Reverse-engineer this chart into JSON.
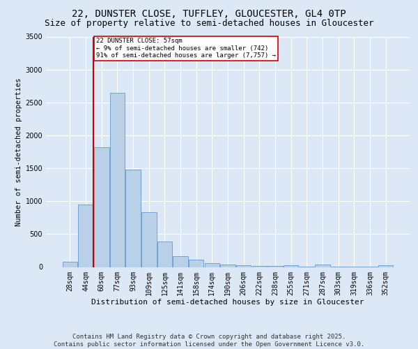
{
  "title1": "22, DUNSTER CLOSE, TUFFLEY, GLOUCESTER, GL4 0TP",
  "title2": "Size of property relative to semi-detached houses in Gloucester",
  "xlabel": "Distribution of semi-detached houses by size in Gloucester",
  "ylabel": "Number of semi-detached properties",
  "footnote1": "Contains HM Land Registry data © Crown copyright and database right 2025.",
  "footnote2": "Contains public sector information licensed under the Open Government Licence v3.0.",
  "bin_labels": [
    "28sqm",
    "44sqm",
    "60sqm",
    "77sqm",
    "93sqm",
    "109sqm",
    "125sqm",
    "141sqm",
    "158sqm",
    "174sqm",
    "190sqm",
    "206sqm",
    "222sqm",
    "238sqm",
    "255sqm",
    "271sqm",
    "287sqm",
    "303sqm",
    "319sqm",
    "336sqm",
    "352sqm"
  ],
  "bar_values": [
    80,
    950,
    1820,
    2650,
    1480,
    830,
    390,
    160,
    110,
    55,
    35,
    25,
    20,
    15,
    30,
    10,
    35,
    10,
    10,
    5,
    25
  ],
  "bar_color": "#b8d0e8",
  "bar_edge_color": "#6699cc",
  "vline_color": "#cc0000",
  "vline_x": 1.5,
  "annotation_text": "22 DUNSTER CLOSE: 57sqm\n← 9% of semi-detached houses are smaller (742)\n91% of semi-detached houses are larger (7,757) →",
  "annotation_box_color": "#ffffff",
  "annotation_box_edge": "#cc0000",
  "ylim": [
    0,
    3500
  ],
  "yticks": [
    0,
    500,
    1000,
    1500,
    2000,
    2500,
    3000,
    3500
  ],
  "background_color": "#dce8f5",
  "grid_color": "#ffffff",
  "title1_fontsize": 10,
  "title2_fontsize": 9,
  "ylabel_fontsize": 7.5,
  "xlabel_fontsize": 8,
  "tick_fontsize": 7,
  "annot_fontsize": 6.5,
  "footnote_fontsize": 6.5
}
